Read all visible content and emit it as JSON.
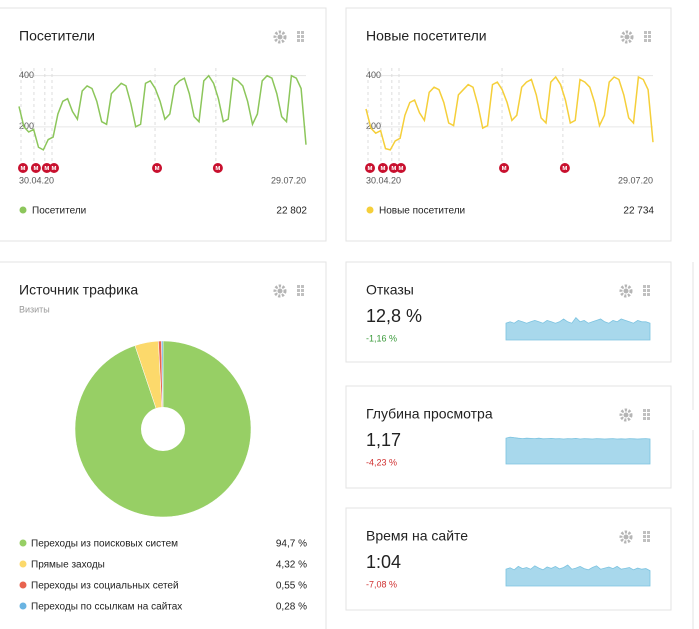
{
  "marker_label": "м",
  "line_widgets": [
    {
      "type": "line",
      "title": "Посетители",
      "color": "#8cc65b",
      "values": [
        280,
        200,
        180,
        190,
        120,
        110,
        150,
        160,
        250,
        300,
        310,
        260,
        230,
        340,
        360,
        350,
        300,
        220,
        210,
        330,
        350,
        370,
        360,
        290,
        200,
        210,
        370,
        380,
        350,
        300,
        230,
        250,
        360,
        380,
        390,
        330,
        240,
        220,
        380,
        400,
        370,
        310,
        220,
        230,
        390,
        380,
        360,
        300,
        210,
        250,
        380,
        400,
        390,
        330,
        240,
        220,
        400,
        390,
        350,
        130
      ],
      "ylim": [
        0,
        430
      ],
      "yticks": [
        200,
        400
      ],
      "xlabels": [
        "30.04.20",
        "29.07.20"
      ],
      "legend": {
        "name": "Посетители",
        "total": 22802,
        "total_label": "22 802"
      }
    },
    {
      "type": "line",
      "title": "Новые посетители",
      "color": "#f5cf3a",
      "values": [
        270,
        195,
        175,
        185,
        115,
        110,
        145,
        155,
        245,
        295,
        305,
        255,
        225,
        335,
        355,
        345,
        295,
        215,
        205,
        325,
        345,
        365,
        355,
        285,
        195,
        205,
        365,
        375,
        345,
        295,
        225,
        245,
        355,
        375,
        385,
        325,
        235,
        215,
        375,
        395,
        365,
        305,
        215,
        225,
        385,
        375,
        355,
        295,
        205,
        245,
        375,
        395,
        385,
        325,
        235,
        215,
        395,
        385,
        345,
        140
      ],
      "ylim": [
        0,
        430
      ],
      "yticks": [
        200,
        400
      ],
      "xlabels": [
        "30.04.20",
        "29.07.20"
      ],
      "legend": {
        "name": "Новые посетители",
        "total": 22734,
        "total_label": "22 734"
      }
    }
  ],
  "traffic": {
    "type": "pie",
    "title": "Источник трафика",
    "subtitle": "Визиты",
    "categories": [
      "Переходы из поисковых систем",
      "Прямые заходы",
      "Переходы из социальных сетей",
      "Переходы по ссылкам на сайтах"
    ],
    "values": [
      94.7,
      4.32,
      0.55,
      0.28
    ],
    "value_labels": [
      "94,7 %",
      "4,32 %",
      "0,55 %",
      "0,28 %"
    ],
    "colors": [
      "#97cf65",
      "#fcd96b",
      "#e8634f",
      "#6ab4e2"
    ]
  },
  "metric_widgets": [
    {
      "title": "Отказы",
      "value": "12,8 %",
      "change": "-1,16 %",
      "change_color": "#3a9a3a",
      "type": "area",
      "color": "#a8d8ec",
      "ylim": [
        0,
        20
      ],
      "values": [
        12,
        13,
        12,
        14,
        13,
        12,
        13,
        14,
        13,
        12,
        14,
        13,
        12,
        13,
        15,
        13,
        12,
        16,
        13,
        14,
        12,
        13,
        14,
        15,
        13,
        12,
        14,
        13,
        15,
        14,
        13,
        12,
        14,
        13,
        13,
        12
      ]
    },
    {
      "title": "Глубина просмотра",
      "value": "1,17",
      "change": "-4,23 %",
      "change_color": "#d03030",
      "type": "area",
      "color": "#a8d8ec",
      "ylim": [
        0,
        1.3
      ],
      "values": [
        1.2,
        1.25,
        1.22,
        1.2,
        1.18,
        1.2,
        1.19,
        1.18,
        1.2,
        1.17,
        1.18,
        1.19,
        1.17,
        1.18,
        1.16,
        1.18,
        1.17,
        1.19,
        1.16,
        1.18,
        1.17,
        1.16,
        1.18,
        1.17,
        1.16,
        1.17,
        1.18,
        1.16,
        1.17,
        1.16,
        1.18,
        1.17,
        1.16,
        1.17,
        1.18,
        1.16
      ]
    },
    {
      "title": "Время на сайте",
      "value": "1:04",
      "change": "-7,08 %",
      "change_color": "#d03030",
      "type": "area",
      "color": "#a8d8ec",
      "ylim": [
        0,
        100
      ],
      "values": [
        60,
        65,
        58,
        70,
        62,
        66,
        60,
        72,
        64,
        58,
        68,
        63,
        70,
        61,
        66,
        75,
        60,
        64,
        70,
        62,
        58,
        66,
        72,
        60,
        64,
        68,
        62,
        70,
        60,
        63,
        66,
        58,
        64,
        60,
        62,
        55
      ]
    }
  ]
}
